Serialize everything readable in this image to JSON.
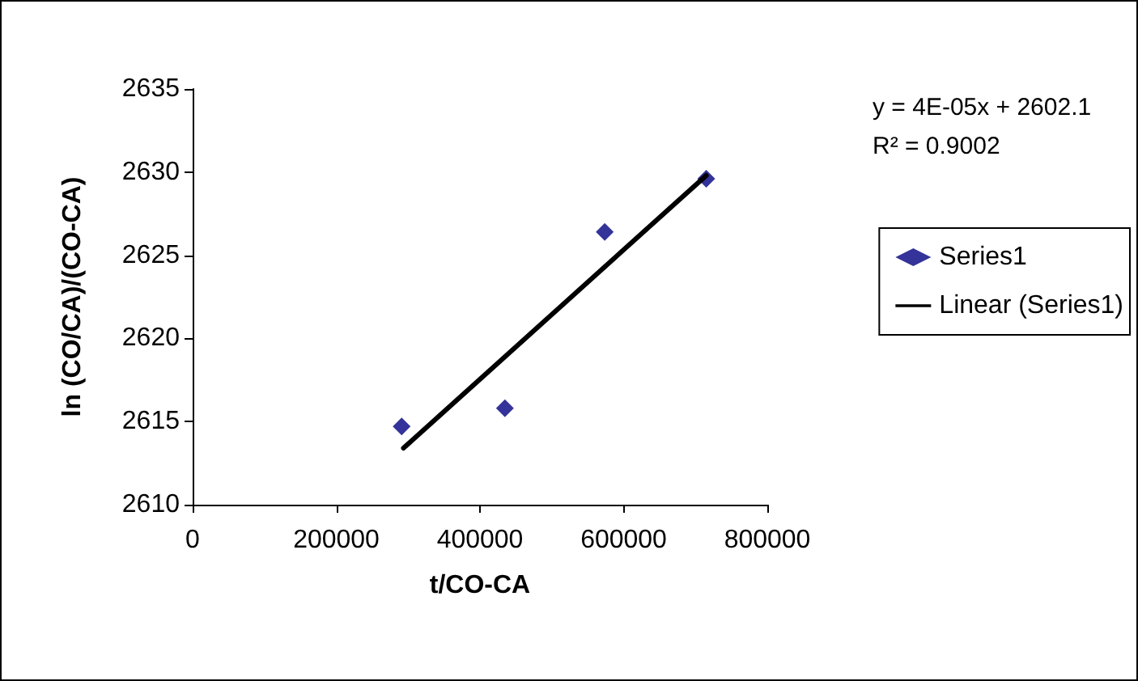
{
  "chart_data": {
    "type": "scatter",
    "xlabel": "t/CO-CA",
    "ylabel": "ln (CO/CA)/(CO-CA)",
    "xlim": [
      0,
      800000
    ],
    "xticks": [
      0,
      200000,
      400000,
      600000,
      800000
    ],
    "ylim": [
      2610,
      2635
    ],
    "yticks": [
      2610,
      2615,
      2620,
      2625,
      2630,
      2635
    ],
    "grid": false,
    "legend": "right",
    "series": [
      {
        "name": "Series1",
        "marker": "diamond",
        "color": "#000080",
        "x": [
          291000,
          434700,
          573700,
          715000
        ],
        "values": [
          2614.7,
          2615.8,
          2626.4,
          2629.6
        ]
      },
      {
        "name": "Linear (Series1)",
        "type": "line",
        "color": "#000000",
        "x": [
          293500,
          715000
        ],
        "values": [
          2613.4,
          2629.8
        ]
      }
    ],
    "annotations": [
      "y = 4E-05x + 2602.1",
      "R² = 0.9002"
    ]
  }
}
